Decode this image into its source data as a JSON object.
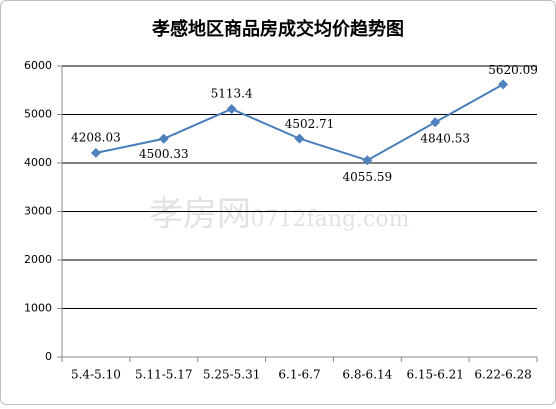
{
  "chart_data": {
    "type": "line",
    "title": "孝感地区商品房成交均价趋势图",
    "watermark": [
      "孝房网",
      "0712fang.com"
    ],
    "categories": [
      "5.4-5.10",
      "5.11-5.17",
      "5.25-5.31",
      "6.1-6.7",
      "6.8-6.14",
      "6.15-6.21",
      "6.22-6.28"
    ],
    "series": [
      {
        "color": "#4a7ebb",
        "values": [
          4208.03,
          4500.33,
          5113.4,
          4502.71,
          4055.59,
          4840.53,
          5620.09
        ]
      }
    ],
    "ylim": [
      0,
      6000
    ],
    "yticks": [
      0,
      1000,
      2000,
      3000,
      4000,
      5000,
      6000
    ],
    "grid": true
  }
}
